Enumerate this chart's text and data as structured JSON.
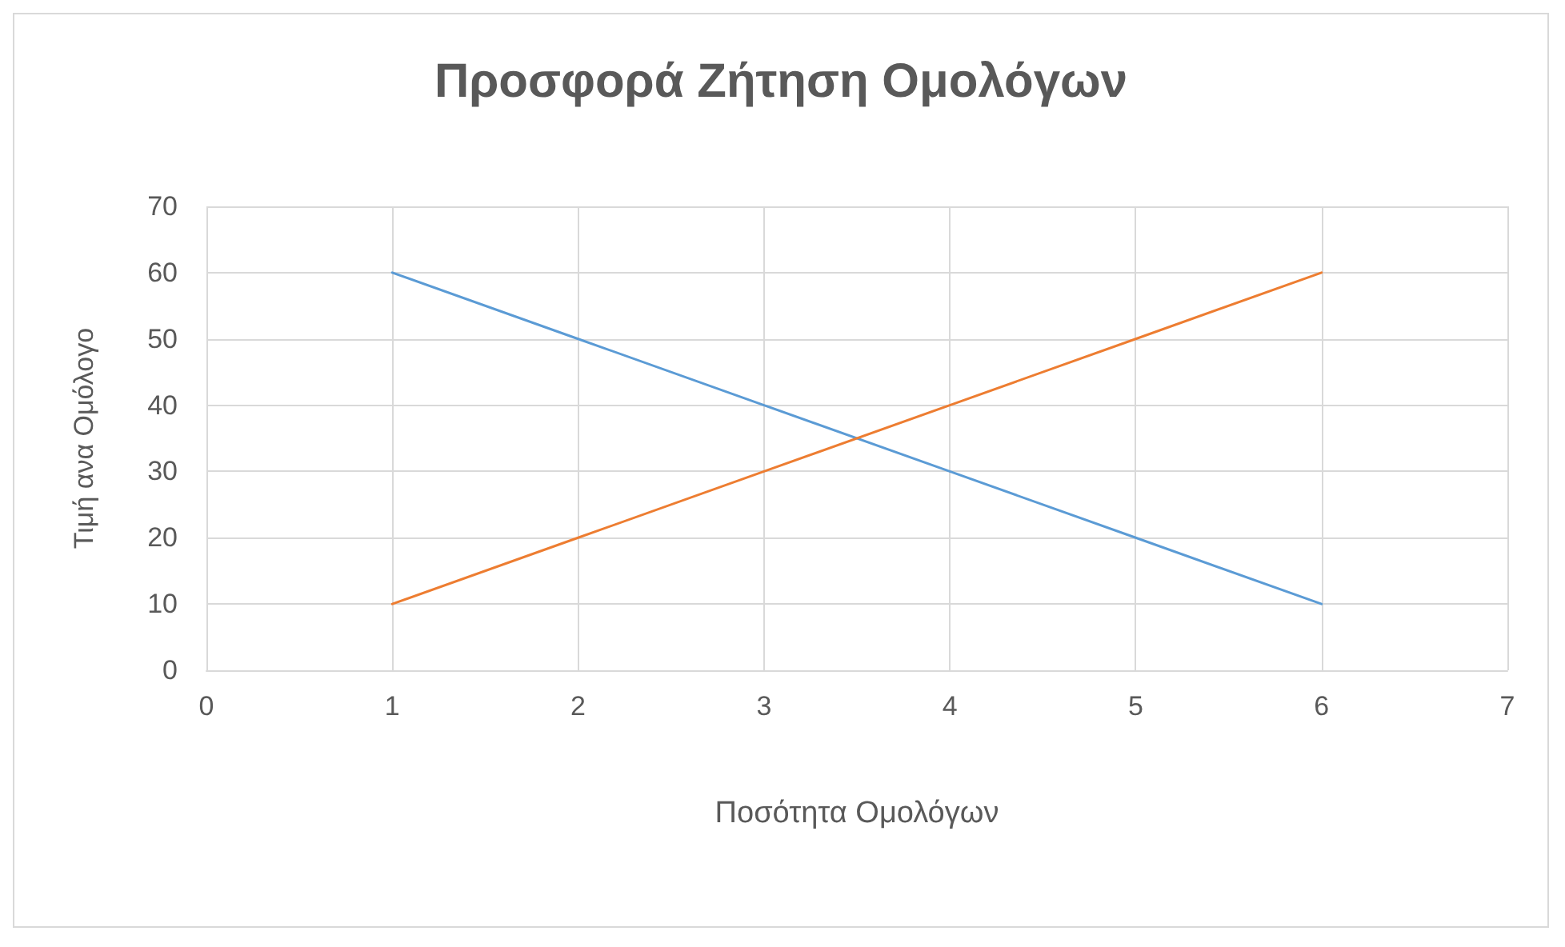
{
  "chart_data": {
    "type": "line",
    "title": "Προσφορά Ζήτηση Ομολόγων",
    "xlabel": "Ποσότητα Ομολόγων",
    "ylabel": "Τιμή ανα Ομόλογο",
    "x": [
      1,
      2,
      3,
      4,
      5,
      6
    ],
    "series": [
      {
        "color": "#5b9bd5",
        "values": [
          60,
          50,
          40,
          30,
          20,
          10
        ]
      },
      {
        "color": "#ed7d31",
        "values": [
          10,
          20,
          30,
          40,
          50,
          60
        ]
      }
    ],
    "xlim": [
      0,
      7
    ],
    "xticks": [
      0,
      1,
      2,
      3,
      4,
      5,
      6,
      7
    ],
    "ylim": [
      0,
      70
    ],
    "yticks": [
      0,
      10,
      20,
      30,
      40,
      50,
      60,
      70
    ],
    "grid": true,
    "marker": "none",
    "line_style": "solid"
  }
}
